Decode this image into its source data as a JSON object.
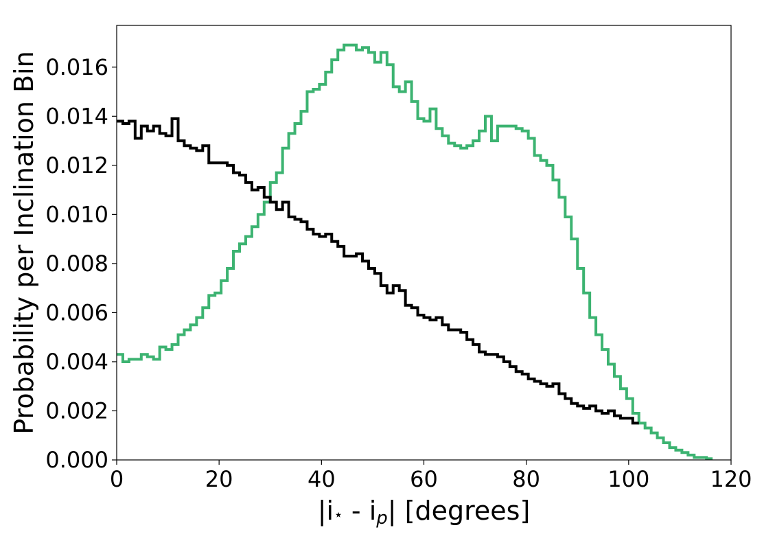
{
  "chart_data": {
    "type": "line",
    "step": true,
    "title": "",
    "xlabel": "|i⋆ - ip| [degrees]",
    "xlabel_parts": {
      "main": "|i",
      "star": "⋆",
      "mid": " - i",
      "sub": "p",
      "tail": "| [degrees]"
    },
    "ylabel": "Probability per Inclination Bin",
    "xlim": [
      0,
      120
    ],
    "ylim": [
      0,
      0.0177
    ],
    "xticks": [
      0,
      20,
      40,
      60,
      80,
      100,
      120
    ],
    "xtick_labels": [
      "0",
      "20",
      "40",
      "60",
      "80",
      "100",
      "120"
    ],
    "yticks": [
      0,
      0.002,
      0.004,
      0.006,
      0.008,
      0.01,
      0.012,
      0.014,
      0.016
    ],
    "ytick_labels": [
      "0.000",
      "0.002",
      "0.004",
      "0.006",
      "0.008",
      "0.010",
      "0.012",
      "0.014",
      "0.016"
    ],
    "grid": false,
    "legend": false,
    "bin_width": 1.2,
    "series": [
      {
        "color": "#3cb371",
        "x_start": 0,
        "values": [
          0.0043,
          0.004,
          0.0041,
          0.0041,
          0.0043,
          0.0042,
          0.0041,
          0.0046,
          0.0045,
          0.0047,
          0.0051,
          0.0053,
          0.0055,
          0.0058,
          0.0062,
          0.0067,
          0.0068,
          0.0073,
          0.0078,
          0.0085,
          0.0088,
          0.0091,
          0.0095,
          0.01,
          0.0105,
          0.0113,
          0.0117,
          0.0127,
          0.0133,
          0.0137,
          0.0142,
          0.015,
          0.0151,
          0.0153,
          0.0158,
          0.0163,
          0.0167,
          0.0169,
          0.0169,
          0.0167,
          0.0168,
          0.0166,
          0.0162,
          0.0166,
          0.0161,
          0.0152,
          0.015,
          0.0154,
          0.0146,
          0.0139,
          0.0138,
          0.0143,
          0.0135,
          0.0132,
          0.0129,
          0.0128,
          0.0127,
          0.0128,
          0.013,
          0.0134,
          0.014,
          0.013,
          0.0136,
          0.0136,
          0.0136,
          0.0135,
          0.0134,
          0.0131,
          0.0124,
          0.0122,
          0.012,
          0.0114,
          0.0107,
          0.0099,
          0.009,
          0.0078,
          0.0068,
          0.0058,
          0.0051,
          0.0045,
          0.0039,
          0.0034,
          0.0029,
          0.0025,
          0.0019,
          0.0015,
          0.0013,
          0.0011,
          0.0009,
          0.0007,
          0.0005,
          0.0004,
          0.0003,
          0.0002,
          0.0001,
          0.0001,
          5e-05
        ]
      },
      {
        "color": "#000000",
        "x_start": 0,
        "values": [
          0.0138,
          0.0137,
          0.0138,
          0.0131,
          0.0136,
          0.0134,
          0.0136,
          0.0133,
          0.0132,
          0.0139,
          0.013,
          0.0128,
          0.0127,
          0.0126,
          0.0128,
          0.0121,
          0.0121,
          0.0121,
          0.012,
          0.0117,
          0.0116,
          0.0113,
          0.011,
          0.0111,
          0.0107,
          0.0105,
          0.0102,
          0.0105,
          0.0099,
          0.0098,
          0.0097,
          0.0094,
          0.0092,
          0.0091,
          0.0092,
          0.0089,
          0.0087,
          0.0083,
          0.0083,
          0.0084,
          0.0081,
          0.0078,
          0.0076,
          0.0071,
          0.0068,
          0.0071,
          0.0069,
          0.0063,
          0.0062,
          0.0059,
          0.0058,
          0.0057,
          0.0058,
          0.0055,
          0.0053,
          0.0053,
          0.0052,
          0.0049,
          0.0047,
          0.0044,
          0.0043,
          0.0043,
          0.0042,
          0.004,
          0.0038,
          0.0036,
          0.0035,
          0.0033,
          0.0032,
          0.0031,
          0.003,
          0.0031,
          0.0027,
          0.0025,
          0.0023,
          0.0022,
          0.0021,
          0.0022,
          0.002,
          0.0019,
          0.002,
          0.0018,
          0.0017,
          0.0017,
          0.0015
        ]
      }
    ]
  }
}
